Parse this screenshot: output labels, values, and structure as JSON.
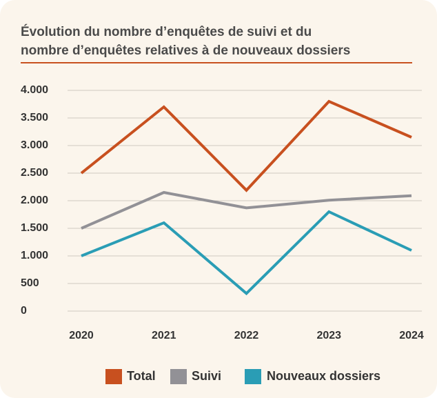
{
  "chart_data": {
    "type": "line",
    "title": [
      "Évolution du nombre d’enquêtes de suivi et du",
      "nombre d’enquêtes relatives à de nouveaux dossiers"
    ],
    "categories": [
      "2020",
      "2021",
      "2022",
      "2023",
      "2024"
    ],
    "series": [
      {
        "name": "Total",
        "color": "#c8501f",
        "values": [
          2500,
          3700,
          2190,
          3800,
          3150
        ]
      },
      {
        "name": "Suivi",
        "color": "#929196",
        "values": [
          1500,
          2150,
          1870,
          2010,
          2090
        ]
      },
      {
        "name": "Nouveaux dossiers",
        "color": "#2a9db5",
        "values": [
          1000,
          1600,
          320,
          1800,
          1100
        ]
      }
    ],
    "ylim": [
      0,
      4000
    ],
    "yticks": [
      0,
      500,
      {
        "value": 1000,
        "label": "1.000"
      },
      {
        "value": 1500,
        "label": "1.500"
      },
      {
        "value": 2000,
        "label": "2.000"
      },
      {
        "value": 2500,
        "label": "2.500"
      },
      {
        "value": 3000,
        "label": "3.000"
      },
      {
        "value": 3500,
        "label": "3.500"
      },
      {
        "value": 4000,
        "label": "4.000"
      }
    ],
    "grid": true
  }
}
